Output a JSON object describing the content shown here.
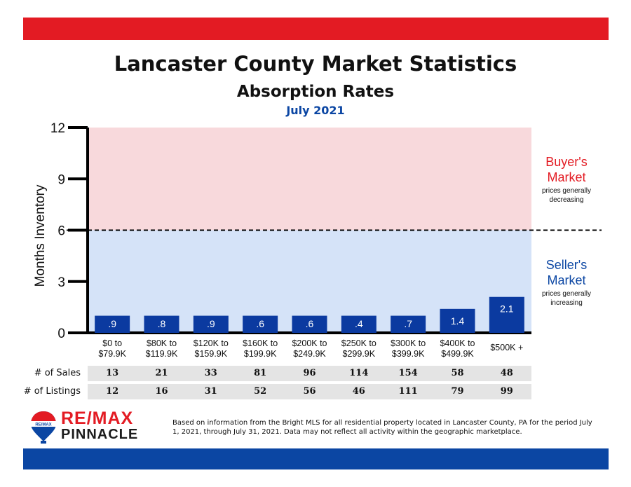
{
  "header": {
    "title": "Lancaster County Market Statistics",
    "subtitle": "Absorption Rates",
    "period": "July 2021"
  },
  "colors": {
    "top_band": "#e31b23",
    "bottom_band": "#0b46a3",
    "buyer_zone": "#f8d9dc",
    "seller_zone": "#d5e3f8",
    "bar": "#0b3aa0",
    "buyer_text": "#e31b23",
    "seller_text": "#0b46a3",
    "period_text": "#0b46a3"
  },
  "chart_data": {
    "type": "bar",
    "ylabel": "Months Inventory",
    "ylim": [
      0,
      12
    ],
    "yticks": [
      "0",
      "3",
      "6",
      "9",
      "12"
    ],
    "threshold": 6,
    "categories": [
      "$0 to\n$79.9K",
      "$80K to\n$119.9K",
      "$120K to\n$159.9K",
      "$160K to\n$199.9K",
      "$200K to\n$249.9K",
      "$250K to\n$299.9K",
      "$300K to\n$399.9K",
      "$400K to\n$499.9K",
      "$500K +"
    ],
    "values": [
      0.9,
      0.8,
      0.9,
      0.6,
      0.6,
      0.4,
      0.7,
      1.4,
      2.1
    ],
    "data_labels": [
      ".9",
      ".8",
      ".9",
      ".6",
      ".6",
      ".4",
      ".7",
      "1.4",
      "2.1"
    ],
    "bar_heights": [
      1,
      1,
      1,
      1,
      1,
      1,
      1,
      1.4,
      2.1
    ],
    "zones": {
      "buyer": {
        "title1": "Buyer's",
        "title2": "Market",
        "note1": "prices generally",
        "note2": "decreasing"
      },
      "seller": {
        "title1": "Seller's",
        "title2": "Market",
        "note1": "prices generally",
        "note2": "increasing"
      }
    }
  },
  "table": {
    "row_labels": [
      "# of Sales",
      "# of Listings"
    ],
    "sales": [
      "13",
      "21",
      "33",
      "81",
      "96",
      "114",
      "154",
      "58",
      "48"
    ],
    "listings": [
      "12",
      "16",
      "31",
      "52",
      "56",
      "46",
      "111",
      "79",
      "99"
    ]
  },
  "logo": {
    "word1": "RE/MAX",
    "word2": "PINNACLE",
    "balloon_text": "RE/MAX"
  },
  "footnote": "Based on information from the Bright MLS for all residential property located in Lancaster County, PA for the period July 1, 2021, through July 31, 2021.  Data may not reflect all activity within the geographic marketplace."
}
